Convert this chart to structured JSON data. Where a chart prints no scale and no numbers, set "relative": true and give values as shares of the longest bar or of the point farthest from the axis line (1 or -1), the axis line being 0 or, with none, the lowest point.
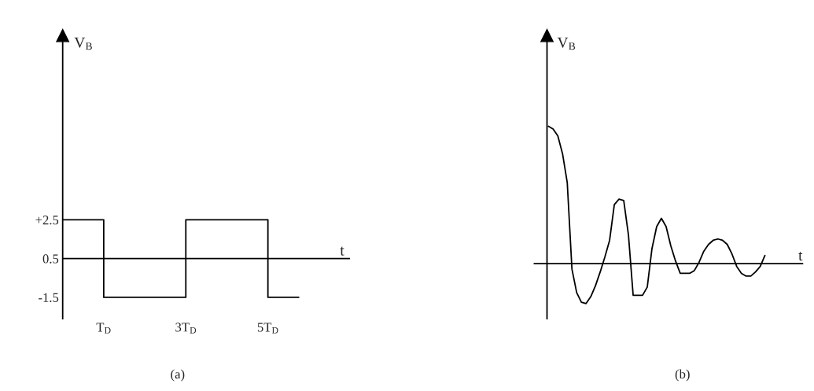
{
  "chart_data": [
    {
      "type": "step",
      "ylabel": "V$_{B}$",
      "x": [
        0,
        1,
        3,
        5,
        5.75
      ],
      "values": [
        2.5,
        -1.5,
        2.5,
        -1.5,
        -1.5
      ],
      "color": "#000000",
      "xlim": [
        0,
        7
      ],
      "ylim": [
        -2.6,
        12
      ],
      "xticks": [
        {
          "value": 1,
          "label": "T$_{D}$"
        },
        {
          "value": 3,
          "label": "3T$_{D}$"
        },
        {
          "value": 5,
          "label": "5T$_{D}$"
        }
      ],
      "yticks": [
        {
          "value": 2.5,
          "label": "+2.5"
        },
        0.5,
        -1.5
      ],
      "ref_lines": [
        {
          "axis": "y",
          "value": 0.5,
          "label": "t",
          "color": "#000000"
        }
      ],
      "annotations": [
        "(a)"
      ]
    },
    {
      "type": "line",
      "relative": true,
      "ylabel": "V$_{B}$",
      "xlabel": "t",
      "color": "#000000",
      "categories": [
        null,
        null,
        null,
        null,
        null,
        null,
        null,
        null,
        null,
        null,
        null,
        null,
        null,
        null,
        null,
        null,
        null,
        null,
        null,
        null,
        null,
        null,
        null,
        null,
        null,
        null,
        null,
        null,
        null,
        null,
        null,
        null,
        null,
        null,
        null,
        null,
        null,
        null,
        null,
        null,
        null,
        null,
        null,
        null,
        null,
        null,
        null
      ],
      "values": [
        1.0,
        0.98,
        0.93,
        0.8,
        0.59,
        -0.04,
        -0.21,
        -0.28,
        -0.29,
        -0.24,
        -0.16,
        -0.06,
        0.05,
        0.17,
        0.43,
        0.47,
        0.46,
        0.21,
        -0.23,
        -0.23,
        -0.23,
        -0.17,
        0.11,
        0.27,
        0.33,
        0.27,
        0.13,
        0.02,
        -0.07,
        -0.07,
        -0.07,
        -0.05,
        0.01,
        0.09,
        0.14,
        0.17,
        0.18,
        0.17,
        0.14,
        0.07,
        -0.02,
        -0.07,
        -0.09,
        -0.09,
        -0.06,
        -0.02,
        0.06
      ],
      "annotations": [
        "(b)"
      ]
    }
  ]
}
